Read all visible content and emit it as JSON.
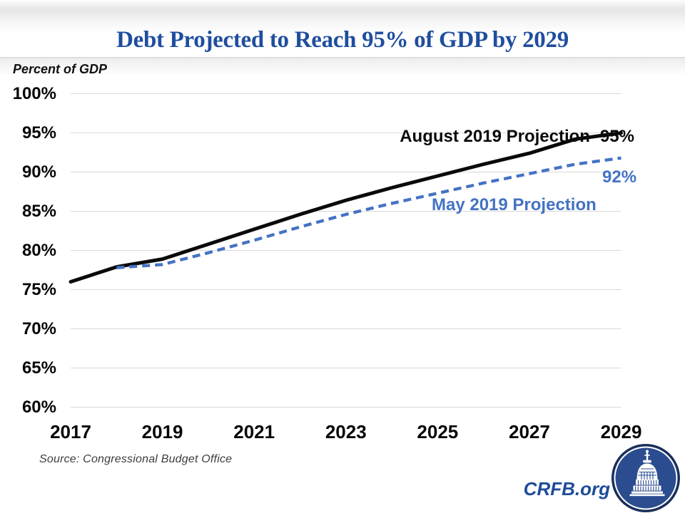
{
  "header": {
    "title": "Debt Projected to Reach 95% of GDP by 2029",
    "units_label": "Percent of GDP"
  },
  "chart_data": {
    "type": "line",
    "title": "Debt Projected to Reach 95% of GDP by 2029",
    "ylabel": "Percent of GDP",
    "xlabel": "",
    "xlim": [
      2017,
      2029
    ],
    "ylim": [
      60,
      100
    ],
    "grid": true,
    "y_tick_values": [
      100,
      95,
      90,
      85,
      80,
      75,
      70,
      65,
      60
    ],
    "y_tick_labels": [
      "100%",
      "95%",
      "90%",
      "85%",
      "80%",
      "75%",
      "70%",
      "65%",
      "60%"
    ],
    "x_tick_values": [
      2017,
      2019,
      2021,
      2023,
      2025,
      2027,
      2029
    ],
    "x_tick_labels": [
      "2017",
      "2019",
      "2021",
      "2023",
      "2025",
      "2027",
      "2029"
    ],
    "series": [
      {
        "name": "August 2019 Projection",
        "style": "solid",
        "color": "#0a0a0a",
        "start_year": 2017,
        "x": [
          2017,
          2018,
          2019,
          2020,
          2021,
          2022,
          2023,
          2024,
          2025,
          2026,
          2027,
          2028,
          2029
        ],
        "values": [
          76.0,
          77.9,
          78.9,
          80.8,
          82.7,
          84.6,
          86.4,
          88.0,
          89.5,
          91.0,
          92.4,
          94.2,
          95.0
        ]
      },
      {
        "name": "May 2019 Projection",
        "style": "dashed",
        "color": "#4472C4",
        "start_year": 2018,
        "x": [
          2018,
          2019,
          2020,
          2021,
          2022,
          2023,
          2024,
          2025,
          2026,
          2027,
          2028,
          2029
        ],
        "values": [
          77.8,
          78.2,
          79.7,
          81.3,
          83.0,
          84.6,
          86.0,
          87.3,
          88.6,
          89.8,
          91.0,
          91.8
        ]
      }
    ],
    "annotations": {
      "august_label": "August 2019 Projection",
      "august_end_label": "95%",
      "may_label": "May 2019 Projection",
      "may_end_label": "92%"
    }
  },
  "footer": {
    "source": "Source: Congressional Budget Office",
    "brand": "CRFB.org"
  },
  "colors": {
    "title_blue": "#1F4E9E",
    "line_black": "#0a0a0a",
    "line_blue": "#4472C4",
    "grid_gray": "#D9D9D9",
    "logo_ring_navy": "#1A2F5B",
    "logo_disc_blue": "#2B4C8F",
    "brand_blue": "#1E4C9A"
  }
}
